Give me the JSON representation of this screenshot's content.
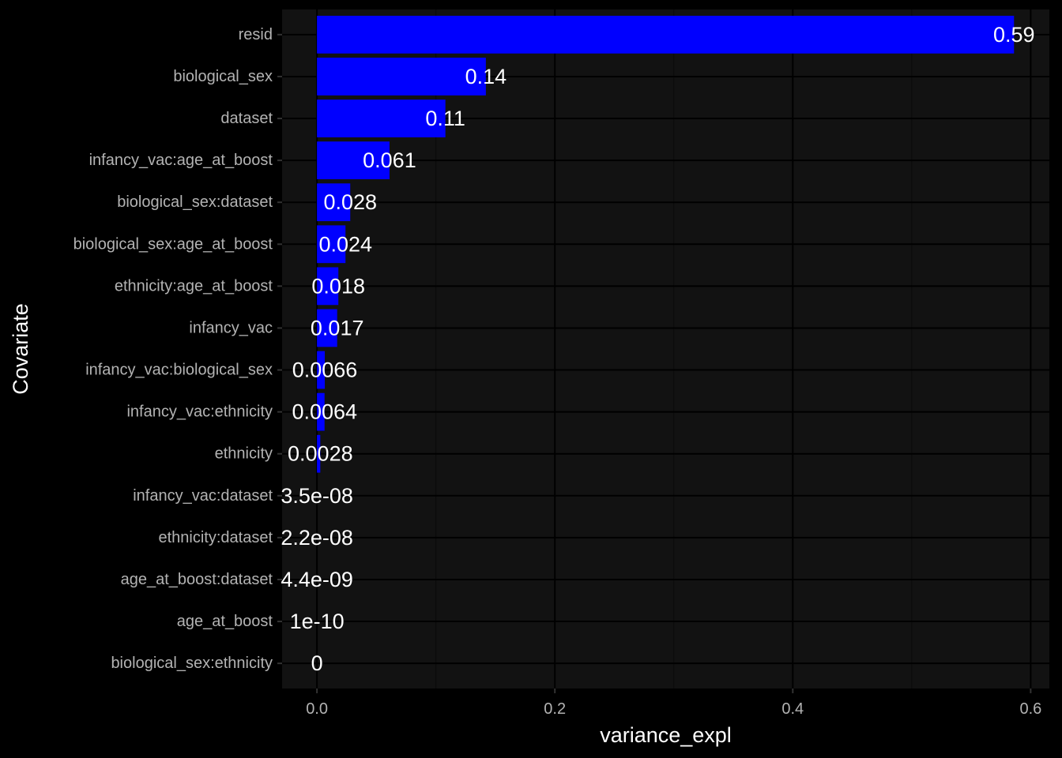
{
  "colors": {
    "page_background": "#000000",
    "panel_background": "#121212",
    "grid_major": "#000000",
    "grid_minor": "#0a0a0a",
    "bar_fill": "#0000ff",
    "tick_label": "#b3b3b3",
    "data_label": "#ffffff",
    "axis_title": "#ffffff"
  },
  "chart_data": {
    "type": "bar",
    "orientation": "horizontal",
    "xlabel": "variance_expl",
    "ylabel": "Covariate",
    "xlim": [
      -0.0293,
      0.6157
    ],
    "x_ticks": [
      0.0,
      0.2,
      0.4,
      0.6
    ],
    "x_tick_labels": [
      "0.0",
      "0.2",
      "0.4",
      "0.6"
    ],
    "grid": true,
    "legend": "none",
    "categories": [
      "resid",
      "biological_sex",
      "dataset",
      "infancy_vac:age_at_boost",
      "biological_sex:dataset",
      "biological_sex:age_at_boost",
      "ethnicity:age_at_boost",
      "infancy_vac",
      "infancy_vac:biological_sex",
      "infancy_vac:ethnicity",
      "ethnicity",
      "infancy_vac:dataset",
      "ethnicity:dataset",
      "age_at_boost:dataset",
      "age_at_boost",
      "biological_sex:ethnicity"
    ],
    "values": [
      0.586,
      0.142,
      0.108,
      0.061,
      0.028,
      0.024,
      0.018,
      0.017,
      0.0066,
      0.0064,
      0.0028,
      3.5e-08,
      2.2e-08,
      4.4e-09,
      1e-10,
      0
    ],
    "data_labels": [
      "0.59",
      "0.14",
      "0.11",
      "0.061",
      "0.028",
      "0.024",
      "0.018",
      "0.017",
      "0.0066",
      "0.0064",
      "0.0028",
      "3.5e-08",
      "2.2e-08",
      "4.4e-09",
      "1e-10",
      "0"
    ]
  }
}
